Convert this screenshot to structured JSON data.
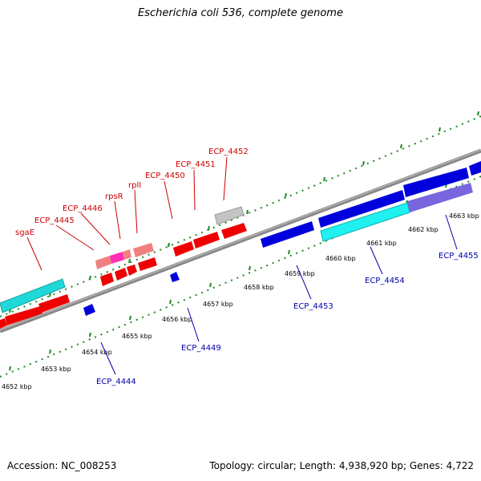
{
  "title": "Escherichia coli 536, complete genome",
  "footer": {
    "accession": "Accession: NC_008253",
    "summary": "Topology: circular; Length: 4,938,920 bp; Genes: 4,722"
  },
  "colors": {
    "forward_red": "#ee0000",
    "reverse_blue": "#0000dd",
    "cyan": "#20d8d8",
    "lavender": "#7766dd",
    "pink": "#f08080",
    "magenta": "#ff2db4",
    "gray": "#c0c0c0",
    "backbone": "#777777",
    "scale_green": "#228822",
    "label_red": "#cc0000",
    "label_blue": "#0000aa"
  },
  "scale_labels": [
    "4652 kbp",
    "4653 kbp",
    "4654 kbp",
    "4655 kbp",
    "4656 kbp",
    "4657 kbp",
    "4658 kbp",
    "4659 kbp",
    "4660 kbp",
    "4661 kbp",
    "4662 kbp",
    "4663 kbp"
  ],
  "top_labels": [
    "sgaE",
    "ECP_4445",
    "ECP_4446",
    "rpsR",
    "rplI",
    "ECP_4450",
    "ECP_4451",
    "ECP_4452"
  ],
  "bottom_labels": [
    "ECP_4444",
    "ECP_4449",
    "ECP_4453",
    "ECP_4454",
    "ECP_4455"
  ]
}
